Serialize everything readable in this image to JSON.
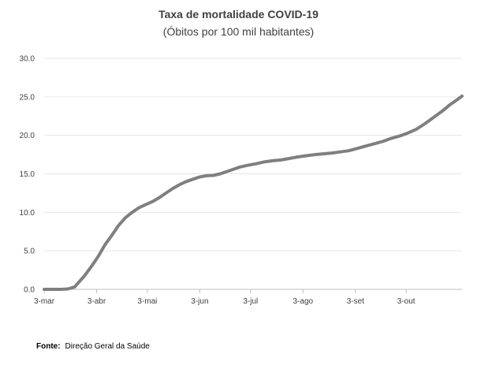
{
  "chart_data": {
    "type": "line",
    "title": "Taxa de mortalidade COVID-19",
    "subtitle": "(Óbitos por 100 mil habitantes)",
    "xlabel": "",
    "ylabel": "",
    "ylim": [
      0,
      30
    ],
    "yticks": [
      "0.0",
      "5.0",
      "10.0",
      "15.0",
      "20.0",
      "25.0",
      "30.0"
    ],
    "ytick_values": [
      0,
      5,
      10,
      15,
      20,
      25,
      30
    ],
    "xlim_days": [
      0,
      247
    ],
    "xticks": [
      {
        "label": "3-mar",
        "day": 0
      },
      {
        "label": "3-abr",
        "day": 31
      },
      {
        "label": "3-mai",
        "day": 61
      },
      {
        "label": "3-jun",
        "day": 92
      },
      {
        "label": "3-jul",
        "day": 122
      },
      {
        "label": "3-ago",
        "day": 153
      },
      {
        "label": "3-set",
        "day": 184
      },
      {
        "label": "3-out",
        "day": 214
      }
    ],
    "series": [
      {
        "name": "Taxa de mortalidade",
        "color": "#7f7f7f",
        "x": [
          0,
          10,
          14,
          18,
          20,
          24,
          28,
          32,
          36,
          40,
          44,
          48,
          52,
          56,
          60,
          64,
          68,
          72,
          76,
          80,
          84,
          88,
          92,
          96,
          100,
          104,
          108,
          112,
          116,
          120,
          125,
          130,
          135,
          140,
          145,
          150,
          155,
          160,
          165,
          170,
          175,
          180,
          185,
          190,
          195,
          200,
          205,
          210,
          215,
          220,
          225,
          230,
          235,
          240,
          244,
          247
        ],
        "values": [
          0.0,
          0.0,
          0.05,
          0.3,
          0.8,
          1.8,
          3.0,
          4.3,
          5.8,
          7.0,
          8.3,
          9.3,
          10.0,
          10.6,
          11.0,
          11.4,
          11.9,
          12.5,
          13.1,
          13.6,
          14.0,
          14.3,
          14.6,
          14.75,
          14.8,
          15.0,
          15.3,
          15.6,
          15.9,
          16.1,
          16.3,
          16.55,
          16.7,
          16.8,
          17.0,
          17.2,
          17.35,
          17.5,
          17.6,
          17.7,
          17.85,
          18.0,
          18.3,
          18.6,
          18.9,
          19.2,
          19.6,
          19.9,
          20.3,
          20.8,
          21.5,
          22.3,
          23.1,
          24.0,
          24.6,
          25.1
        ]
      }
    ]
  },
  "footer": {
    "source_label": "Fonte:",
    "source_text": "Direção Geral da Saúde"
  }
}
